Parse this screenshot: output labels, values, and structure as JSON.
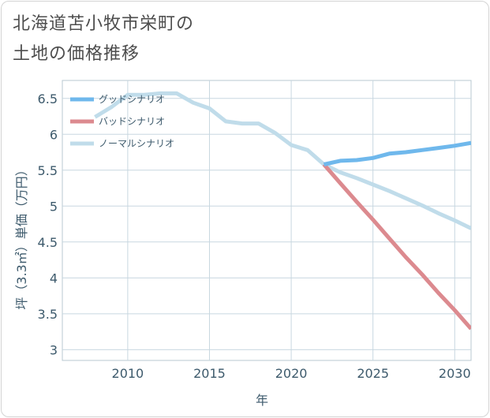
{
  "header": {
    "title_line1": "北海道苫小牧市栄町の",
    "title_line2": "土地の価格推移"
  },
  "chart_data": {
    "type": "line",
    "xlabel": "年",
    "ylabel": "坪（3.3㎡）単価（万円）",
    "xlim": [
      2006,
      2031
    ],
    "ylim": [
      2.85,
      6.75
    ],
    "x_ticks": [
      2010,
      2015,
      2020,
      2025,
      2030
    ],
    "y_ticks": [
      3,
      3.5,
      4,
      4.5,
      5,
      5.5,
      6,
      6.5
    ],
    "y_tick_labels": [
      "3",
      "3.5",
      "4",
      "4.5",
      "5",
      "5.5",
      "6",
      "6.5"
    ],
    "grid": true,
    "legend": "top-left",
    "series": [
      {
        "name": "グッドシナリオ",
        "color": "#6fb8ec",
        "x": [
          2022,
          2023,
          2024,
          2025,
          2026,
          2027,
          2028,
          2029,
          2030,
          2031
        ],
        "y": [
          5.58,
          5.63,
          5.64,
          5.67,
          5.73,
          5.75,
          5.78,
          5.81,
          5.84,
          5.88
        ]
      },
      {
        "name": "バッドシナリオ",
        "color": "#dc8a8f",
        "x": [
          2022,
          2023,
          2024,
          2025,
          2026,
          2027,
          2028,
          2029,
          2030,
          2031
        ],
        "y": [
          5.58,
          5.32,
          5.06,
          4.81,
          4.55,
          4.29,
          4.05,
          3.79,
          3.55,
          3.29
        ]
      },
      {
        "name": "ノーマルシナリオ",
        "color": "#c0dcea",
        "x": [
          2008,
          2009,
          2010,
          2011,
          2012,
          2013,
          2014,
          2015,
          2016,
          2017,
          2018,
          2019,
          2020,
          2021,
          2022,
          2023,
          2024,
          2025,
          2026,
          2027,
          2028,
          2029,
          2030,
          2031
        ],
        "y": [
          6.24,
          6.38,
          6.55,
          6.55,
          6.57,
          6.57,
          6.44,
          6.36,
          6.18,
          6.15,
          6.15,
          6.02,
          5.85,
          5.78,
          5.58,
          5.47,
          5.39,
          5.3,
          5.21,
          5.11,
          5.01,
          4.9,
          4.8,
          4.69
        ]
      }
    ]
  }
}
